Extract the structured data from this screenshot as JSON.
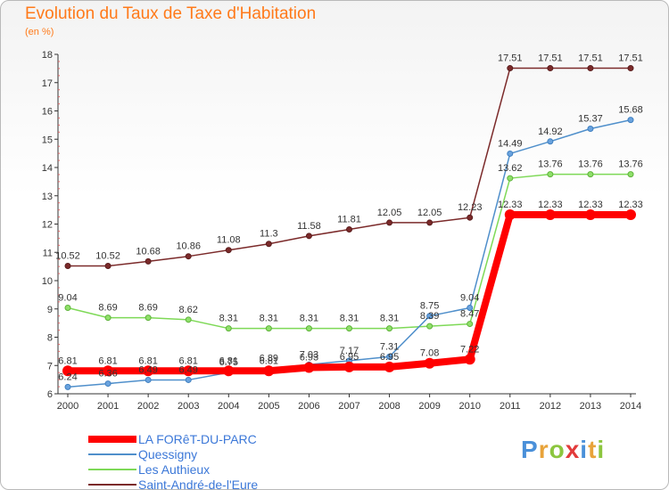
{
  "title": "Evolution du Taux de Taxe d'Habitation",
  "subtitle": "(en %)",
  "logo": {
    "letters": [
      "P",
      "r",
      "o",
      "x",
      "i",
      "t",
      "i"
    ],
    "colors": [
      "#4a90d9",
      "#e8a33a",
      "#8cc63f",
      "#e23b3b",
      "#4a90d9",
      "#e8a33a",
      "#8cc63f"
    ]
  },
  "chart_data": {
    "type": "line",
    "title": "Evolution du Taux de Taxe d'Habitation",
    "ylabel": "(en %)",
    "x": [
      "2000",
      "2001",
      "2002",
      "2003",
      "2004",
      "2005",
      "2006",
      "2007",
      "2008",
      "2009",
      "2010",
      "2011",
      "2012",
      "2013",
      "2014"
    ],
    "ylim": [
      6,
      18
    ],
    "yticks": [
      "6",
      "7",
      "8",
      "9",
      "10",
      "11",
      "12",
      "13",
      "14",
      "15",
      "16",
      "17",
      "18"
    ],
    "grid": false,
    "legend_position": "bottom-left",
    "series": [
      {
        "name": "LA FORêT-DU-PARC",
        "color": "#ff0000",
        "values": [
          6.81,
          6.81,
          6.81,
          6.81,
          6.81,
          6.81,
          6.93,
          6.95,
          6.95,
          7.08,
          7.22,
          12.33,
          12.33,
          12.33,
          12.33
        ],
        "labels": [
          "6.81",
          "6.81",
          "6.81",
          "6.81",
          "6.81",
          "6.81",
          "6.93",
          "6.95",
          "6.95",
          "7.08",
          "7.22",
          "12.33",
          "12.33",
          "12.33",
          "12.33"
        ]
      },
      {
        "name": "Quessigny",
        "color": "#4f8fcb",
        "values": [
          6.24,
          6.36,
          6.49,
          6.49,
          6.75,
          6.89,
          7.03,
          7.17,
          7.31,
          8.75,
          9.04,
          14.49,
          14.92,
          15.37,
          15.68
        ],
        "labels": [
          "6.24",
          "6.36",
          "6.49",
          "6.49",
          "6.75",
          "6.89",
          "7.03",
          "7.17",
          "7.31",
          "8.75",
          "9.04",
          "14.49",
          "14.92",
          "15.37",
          "15.68"
        ]
      },
      {
        "name": "Les Authieux",
        "color": "#7ed957",
        "values": [
          9.04,
          8.69,
          8.69,
          8.62,
          8.31,
          8.31,
          8.31,
          8.31,
          8.31,
          8.39,
          8.47,
          13.62,
          13.76,
          13.76,
          13.76
        ],
        "labels": [
          "9.04",
          "8.69",
          "8.69",
          "8.62",
          "8.31",
          "8.31",
          "8.31",
          "8.31",
          "8.31",
          "8.39",
          "8.47",
          "13.62",
          "13.76",
          "13.76",
          "13.76"
        ]
      },
      {
        "name": "Saint-André-de-l'Eure",
        "color": "#7b2a2a",
        "values": [
          10.52,
          10.52,
          10.68,
          10.86,
          11.08,
          11.3,
          11.58,
          11.81,
          12.05,
          12.05,
          12.23,
          17.51,
          17.51,
          17.51,
          17.51
        ],
        "labels": [
          "10.52",
          "10.52",
          "10.68",
          "10.86",
          "11.08",
          "11.3",
          "11.58",
          "11.81",
          "12.05",
          "12.05",
          "12.23",
          "17.51",
          "17.51",
          "17.51",
          "17.51"
        ]
      }
    ]
  }
}
